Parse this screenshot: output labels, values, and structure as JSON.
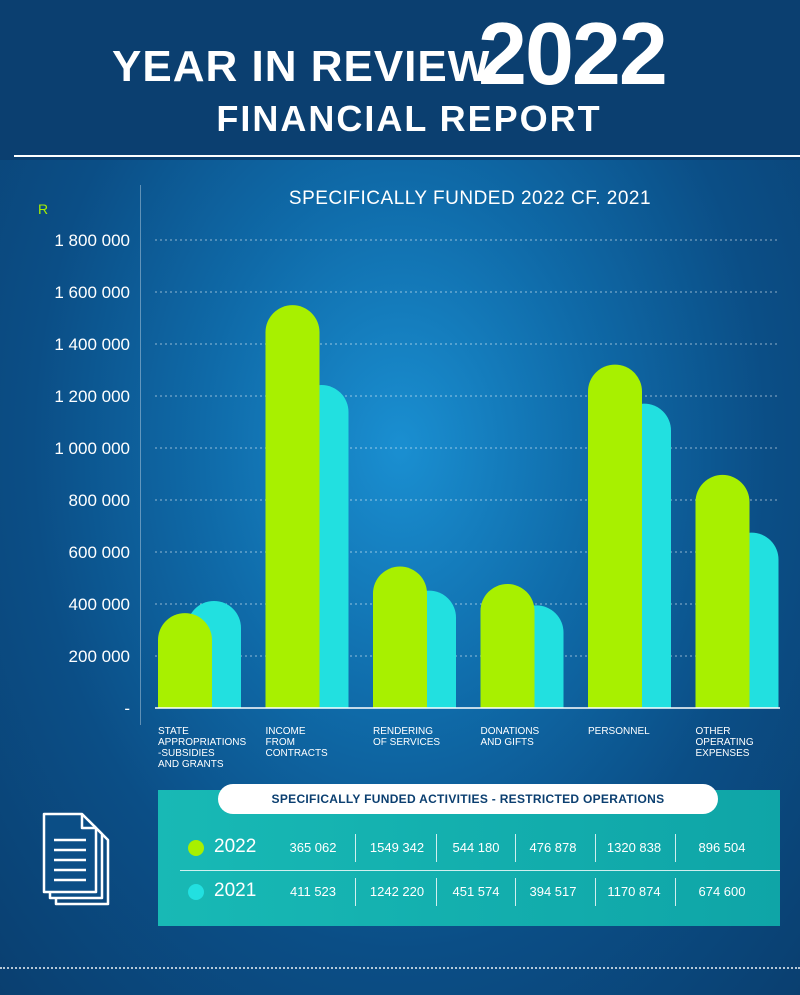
{
  "header": {
    "title_line1": "YEAR IN REVIEW",
    "title_year": "2022",
    "title_line2": "FINANCIAL REPORT"
  },
  "colors": {
    "series_2022": "#a8f000",
    "series_2021": "#22e0e0",
    "background": "#0f6aa8",
    "panel": "#14b0ae"
  },
  "chart_data": {
    "type": "bar",
    "title": "SPECIFICALLY FUNDED 2022 CF. 2021",
    "ylabel": "R",
    "ylim": [
      0,
      1800000
    ],
    "yticks": [
      "-",
      "200 000",
      "400 000",
      "600 000",
      "800 000",
      "1 000 000",
      "1 200 000",
      "1 400 000",
      "1 600 000",
      "1 800 000"
    ],
    "grid": true,
    "categories": [
      "STATE APPROPRIATIONS -SUBSIDIES AND GRANTS",
      "INCOME FROM CONTRACTS",
      "RENDERING OF SERVICES",
      "DONATIONS AND GIFTS",
      "PERSONNEL",
      "OTHER OPERATING EXPENSES"
    ],
    "series": [
      {
        "name": "2022",
        "values": [
          365062,
          1549342,
          544180,
          476878,
          1320838,
          896504
        ]
      },
      {
        "name": "2021",
        "values": [
          411523,
          1242220,
          451574,
          394517,
          1170874,
          674600
        ]
      }
    ]
  },
  "table": {
    "heading": "SPECIFICALLY FUNDED ACTIVITIES - RESTRICTED OPERATIONS",
    "rows": [
      {
        "year": "2022",
        "cells": [
          "365 062",
          "1549 342",
          "544 180",
          "476 878",
          "1320 838",
          "896 504"
        ]
      },
      {
        "year": "2021",
        "cells": [
          "411 523",
          "1242 220",
          "451 574",
          "394 517",
          "1170 874",
          "674 600"
        ]
      }
    ]
  },
  "icons": {
    "document": "document-stack-icon"
  }
}
